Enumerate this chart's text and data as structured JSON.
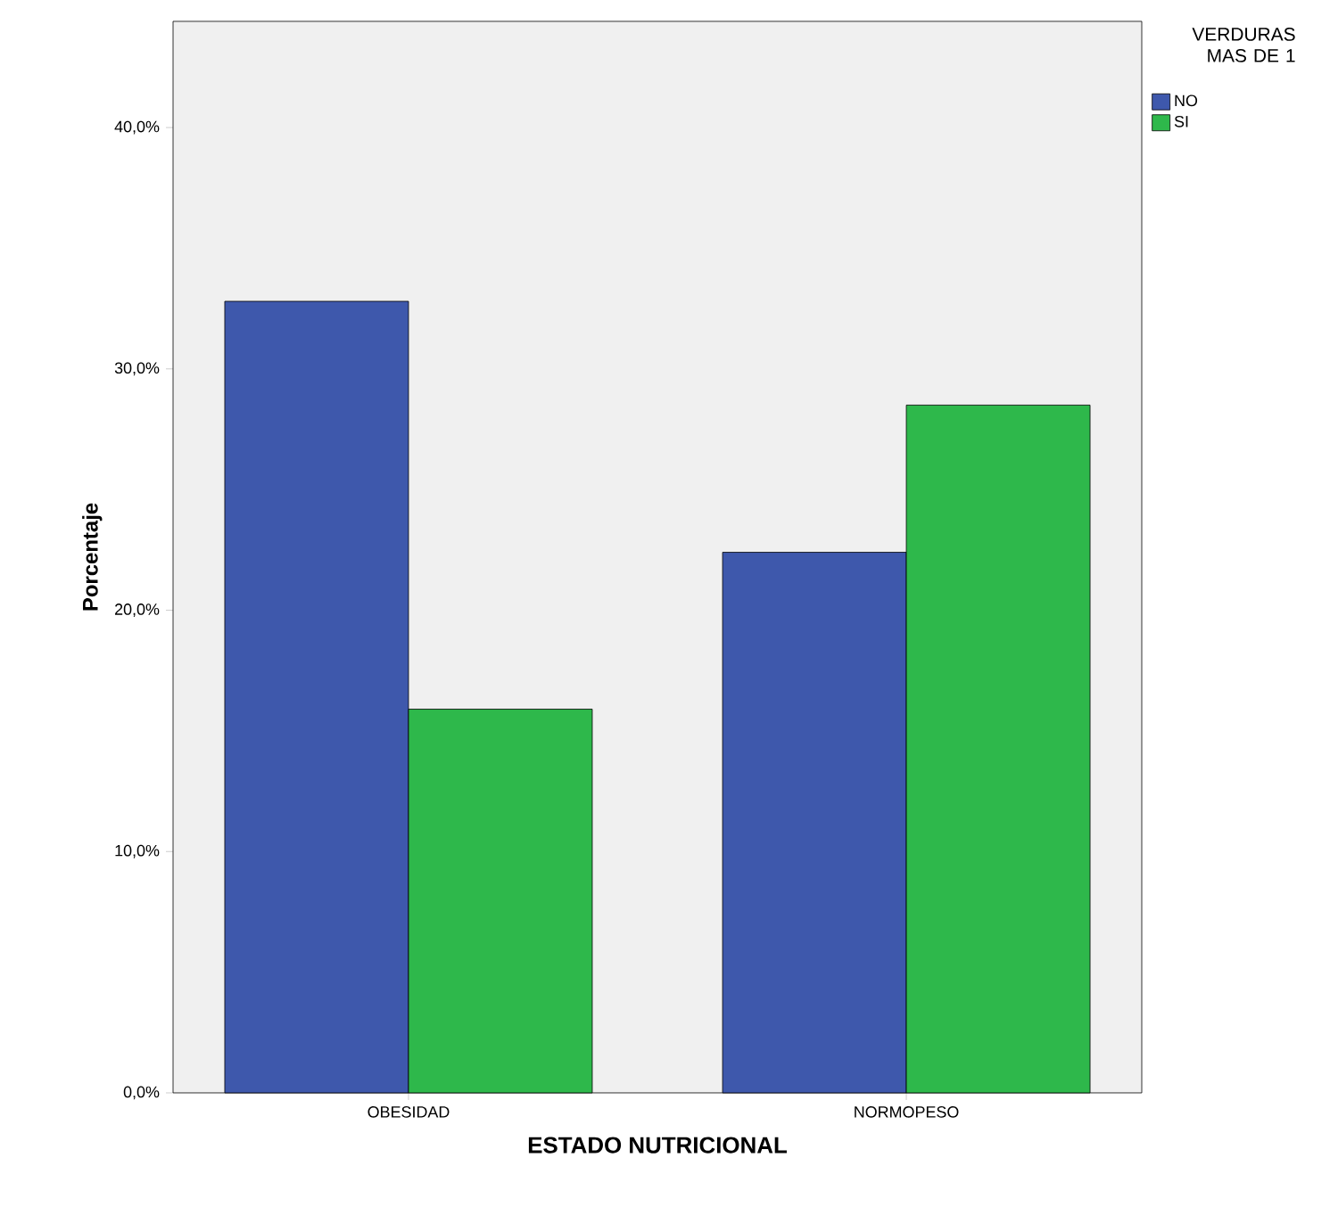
{
  "chart_data": {
    "type": "bar",
    "xlabel": "ESTADO NUTRICIONAL",
    "ylabel": "Porcentaje",
    "legend_title": "VERDURAS MAS DE 1",
    "categories": [
      "OBESIDAD",
      "NORMOPESO"
    ],
    "series": [
      {
        "name": "NO",
        "color": "#3e58ac",
        "values": [
          32.8,
          22.4
        ]
      },
      {
        "name": "SI",
        "color": "#2eb84b",
        "values": [
          15.9,
          28.5
        ]
      }
    ],
    "ylim": [
      0,
      44.4
    ],
    "yticks": [
      {
        "value": 0,
        "label": "0,0%"
      },
      {
        "value": 10,
        "label": "10,0%"
      },
      {
        "value": 20,
        "label": "20,0%"
      },
      {
        "value": 30,
        "label": "30,0%"
      },
      {
        "value": 40,
        "label": "40,0%"
      }
    ],
    "grid": false,
    "legend": "top right"
  }
}
